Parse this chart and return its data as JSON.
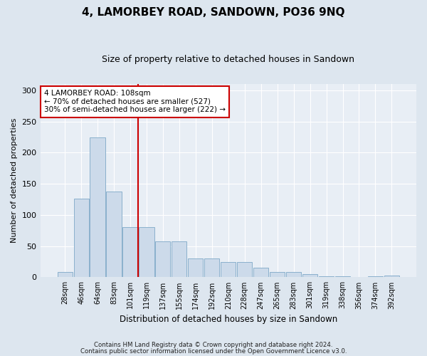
{
  "title": "4, LAMORBEY ROAD, SANDOWN, PO36 9NQ",
  "subtitle": "Size of property relative to detached houses in Sandown",
  "xlabel": "Distribution of detached houses by size in Sandown",
  "ylabel": "Number of detached properties",
  "categories": [
    "28sqm",
    "46sqm",
    "64sqm",
    "83sqm",
    "101sqm",
    "119sqm",
    "137sqm",
    "155sqm",
    "174sqm",
    "192sqm",
    "210sqm",
    "228sqm",
    "247sqm",
    "265sqm",
    "283sqm",
    "301sqm",
    "319sqm",
    "338sqm",
    "356sqm",
    "374sqm",
    "392sqm"
  ],
  "values": [
    8,
    126,
    224,
    138,
    80,
    80,
    58,
    58,
    30,
    30,
    25,
    25,
    15,
    8,
    8,
    5,
    2,
    2,
    0,
    2,
    3
  ],
  "bar_color": "#ccdaea",
  "bar_edge_color": "#8ab0cc",
  "vline_index": 4,
  "vline_color": "#cc0000",
  "annotation_text": "4 LAMORBEY ROAD: 108sqm\n← 70% of detached houses are smaller (527)\n30% of semi-detached houses are larger (222) →",
  "annotation_box_color": "#ffffff",
  "annotation_box_edge": "#cc0000",
  "ylim": [
    0,
    310
  ],
  "yticks": [
    0,
    50,
    100,
    150,
    200,
    250,
    300
  ],
  "footer1": "Contains HM Land Registry data © Crown copyright and database right 2024.",
  "footer2": "Contains public sector information licensed under the Open Government Licence v3.0.",
  "bg_color": "#dde6ef",
  "plot_bg_color": "#e8eef5"
}
